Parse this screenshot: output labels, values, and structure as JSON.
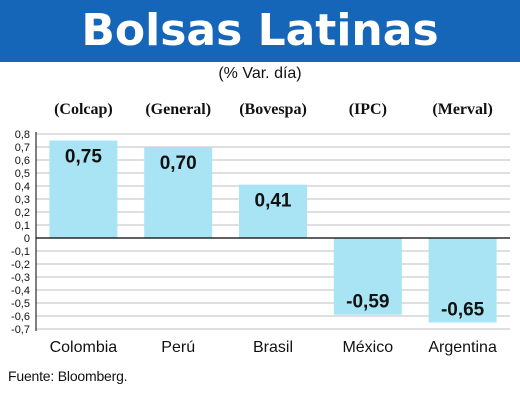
{
  "header": {
    "title": "Bolsas Latinas",
    "subtitle": "(% Var. día)"
  },
  "source": "Fuente: Bloomberg.",
  "colors": {
    "banner": "#1565b8",
    "bar": "#a9e4f5",
    "grid": "#bfbfbf",
    "axis": "#000000"
  },
  "chart_data": {
    "type": "bar",
    "categories": [
      "Colombia",
      "Perú",
      "Brasil",
      "México",
      "Argentina"
    ],
    "index_names": [
      "(Colcap)",
      "(General)",
      "(Bovespa)",
      "(IPC)",
      "(Merval)"
    ],
    "values": [
      0.75,
      0.7,
      0.41,
      -0.59,
      -0.65
    ],
    "value_labels": [
      "0,75",
      "0,70",
      "0,41",
      "-0,59",
      "-0,65"
    ],
    "y_ticks": [
      "-0,7",
      "-0,6",
      "-0,5",
      "-0,4",
      "-0,3",
      "-0,2",
      "-0,1",
      "0",
      "0,1",
      "0,2",
      "0,3",
      "0,4",
      "0,5",
      "0,6",
      "0,7",
      "0,8"
    ],
    "ylim": [
      -0.7,
      0.8
    ],
    "grid": true,
    "title": "Bolsas Latinas",
    "subtitle": "(% Var. día)"
  }
}
